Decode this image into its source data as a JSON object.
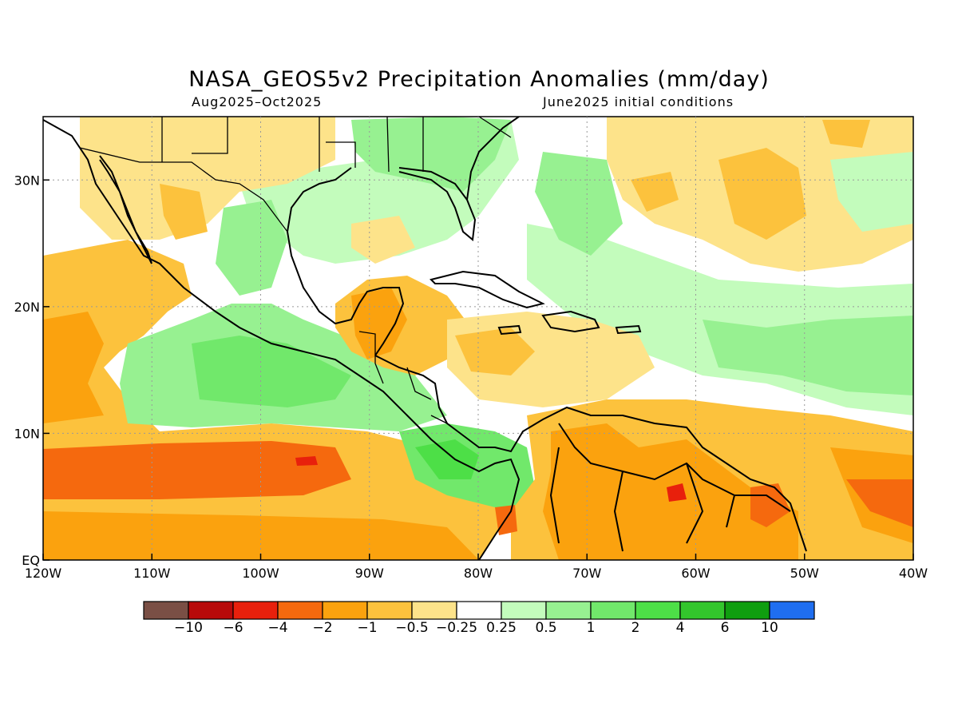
{
  "title": "NASA_GEOS5v2 Precipitation Anomalies (mm/day)",
  "subtitle_left": "Aug2025–Oct2025",
  "subtitle_right": "June2025 initial conditions",
  "map": {
    "lon_range": [
      -120,
      -40
    ],
    "lat_range": [
      0,
      35
    ],
    "x_ticks": [
      {
        "value": -120,
        "label": "120W"
      },
      {
        "value": -110,
        "label": "110W"
      },
      {
        "value": -100,
        "label": "100W"
      },
      {
        "value": -90,
        "label": "90W"
      },
      {
        "value": -80,
        "label": "80W"
      },
      {
        "value": -70,
        "label": "70W"
      },
      {
        "value": -60,
        "label": "60W"
      },
      {
        "value": -50,
        "label": "50W"
      },
      {
        "value": -40,
        "label": "40W"
      }
    ],
    "y_ticks": [
      {
        "value": 0,
        "label": "EQ"
      },
      {
        "value": 10,
        "label": "10N"
      },
      {
        "value": 20,
        "label": "20N"
      },
      {
        "value": 30,
        "label": "30N"
      }
    ],
    "grid": "dotted"
  },
  "legend": {
    "colors": [
      "#7a4f45",
      "#b80a0a",
      "#e8200c",
      "#f5690e",
      "#fba20e",
      "#fcc23d",
      "#fde38a",
      "#ffffff",
      "#c3fcbc",
      "#97f191",
      "#71e86b",
      "#4ddf47",
      "#33c62c",
      "#0f9e0f",
      "#1f6ef0"
    ],
    "labels": [
      "−10",
      "−6",
      "−4",
      "−2",
      "−1",
      "−0.5",
      "−0.25",
      "0.25",
      "0.5",
      "1",
      "2",
      "4",
      "6",
      "10"
    ]
  },
  "anomaly_regions": [
    {
      "name": "pacific-itcz-dry-band",
      "level": "-2",
      "color": "#f5690e"
    },
    {
      "name": "pacific-itcz-core",
      "level": "-4",
      "color": "#e8200c"
    },
    {
      "name": "mexico-pacific-coast-wet",
      "level": "1",
      "color": "#71e86b"
    },
    {
      "name": "gulf-of-mexico-wet",
      "level": "0.5",
      "color": "#97f191"
    },
    {
      "name": "yucatan-dry",
      "level": "-1",
      "color": "#fba20e"
    },
    {
      "name": "caribbean-dry",
      "level": "-1",
      "color": "#fba20e"
    },
    {
      "name": "panama-colombia-wet",
      "level": "2",
      "color": "#4ddf47"
    },
    {
      "name": "venezuela-guianas-dry",
      "level": "-1",
      "color": "#fba20e"
    },
    {
      "name": "tropical-atlantic-wet-band",
      "level": "0.5",
      "color": "#97f191"
    },
    {
      "name": "subtropical-atlantic-dry",
      "level": "-0.5",
      "color": "#fde38a"
    },
    {
      "name": "tropical-atlantic-dry",
      "level": "-1",
      "color": "#fba20e"
    }
  ]
}
